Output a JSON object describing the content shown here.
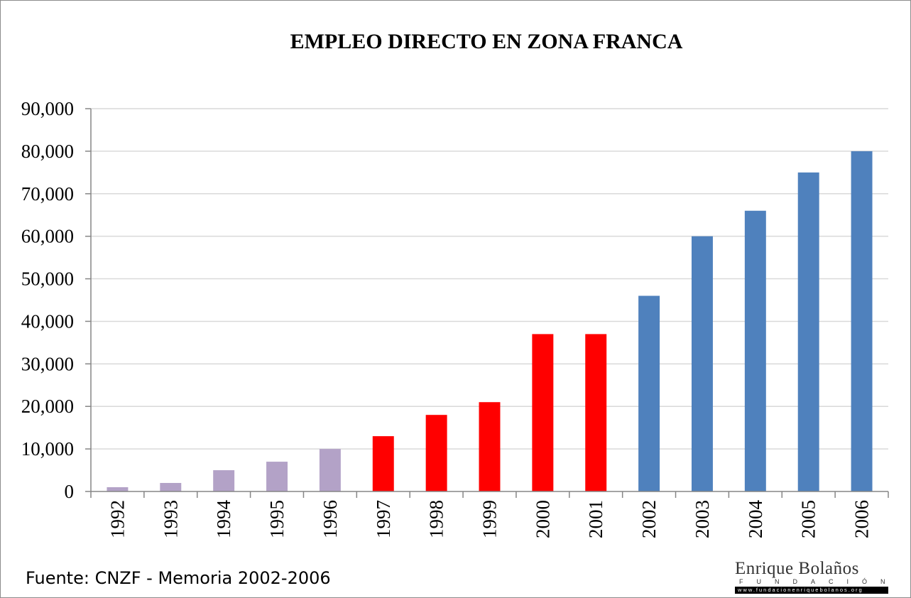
{
  "chart_data": {
    "type": "bar",
    "title": "EMPLEO DIRECTO EN ZONA FRANCA",
    "categories": [
      "1992",
      "1993",
      "1994",
      "1995",
      "1996",
      "1997",
      "1998",
      "1999",
      "2000",
      "2001",
      "2002",
      "2003",
      "2004",
      "2005",
      "2006"
    ],
    "values": [
      1000,
      2000,
      5000,
      7000,
      10000,
      13000,
      18000,
      21000,
      37000,
      37000,
      46000,
      60000,
      66000,
      75000,
      80000
    ],
    "bar_colors": [
      "#b3a2c7",
      "#b3a2c7",
      "#b3a2c7",
      "#b3a2c7",
      "#b3a2c7",
      "#ff0000",
      "#ff0000",
      "#ff0000",
      "#ff0000",
      "#ff0000",
      "#4f81bd",
      "#4f81bd",
      "#4f81bd",
      "#4f81bd",
      "#4f81bd"
    ],
    "ylim": [
      0,
      90000
    ],
    "yticks": [
      0,
      10000,
      20000,
      30000,
      40000,
      50000,
      60000,
      70000,
      80000,
      90000
    ],
    "ytick_labels": [
      "0",
      "10,000",
      "20,000",
      "30,000",
      "40,000",
      "50,000",
      "60,000",
      "70,000",
      "80,000",
      "90,000"
    ],
    "grid": true,
    "grid_color": "#d9d9d9",
    "axis_color": "#868686",
    "xlabel": "",
    "ylabel": ""
  },
  "source": "Fuente: CNZF - Memoria 2002-2006",
  "logo": {
    "name": "Enrique Bolaños",
    "subtitle": "FUNDACIÓN",
    "url": "www.fundacionenriquebolanos.org"
  }
}
